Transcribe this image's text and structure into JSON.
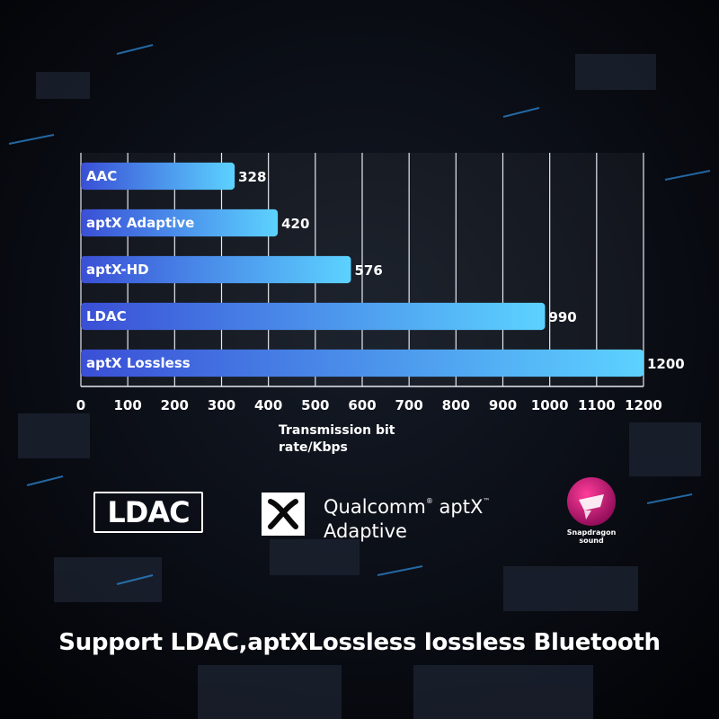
{
  "chart_data": {
    "type": "bar",
    "orientation": "horizontal",
    "categories": [
      "AAC",
      "aptX Adaptive",
      "aptX-HD",
      "LDAC",
      "aptX Lossless"
    ],
    "values": [
      328,
      420,
      576,
      990,
      1200
    ],
    "xlabel": "Transmission bit rate/Kbps",
    "xlim": [
      0,
      1200
    ],
    "xticks": [
      0,
      100,
      200,
      300,
      400,
      500,
      600,
      700,
      800,
      900,
      1000,
      1100,
      1200
    ],
    "grid": true
  },
  "logos": {
    "ldac": "LDAC",
    "aptx_line1": "Qualcomm",
    "aptx_line1b": "aptX",
    "aptx_line2": "Adaptive",
    "snapdragon_line1": "Snapdragon",
    "snapdragon_line2": "sound"
  },
  "headline": "Support LDAC,aptXLossless lossless Bluetooth",
  "colors": {
    "background": "#05070c",
    "bar_start": "#3a4fd6",
    "bar_end": "#5cd2ff",
    "snapdragon": "#c4147a"
  }
}
